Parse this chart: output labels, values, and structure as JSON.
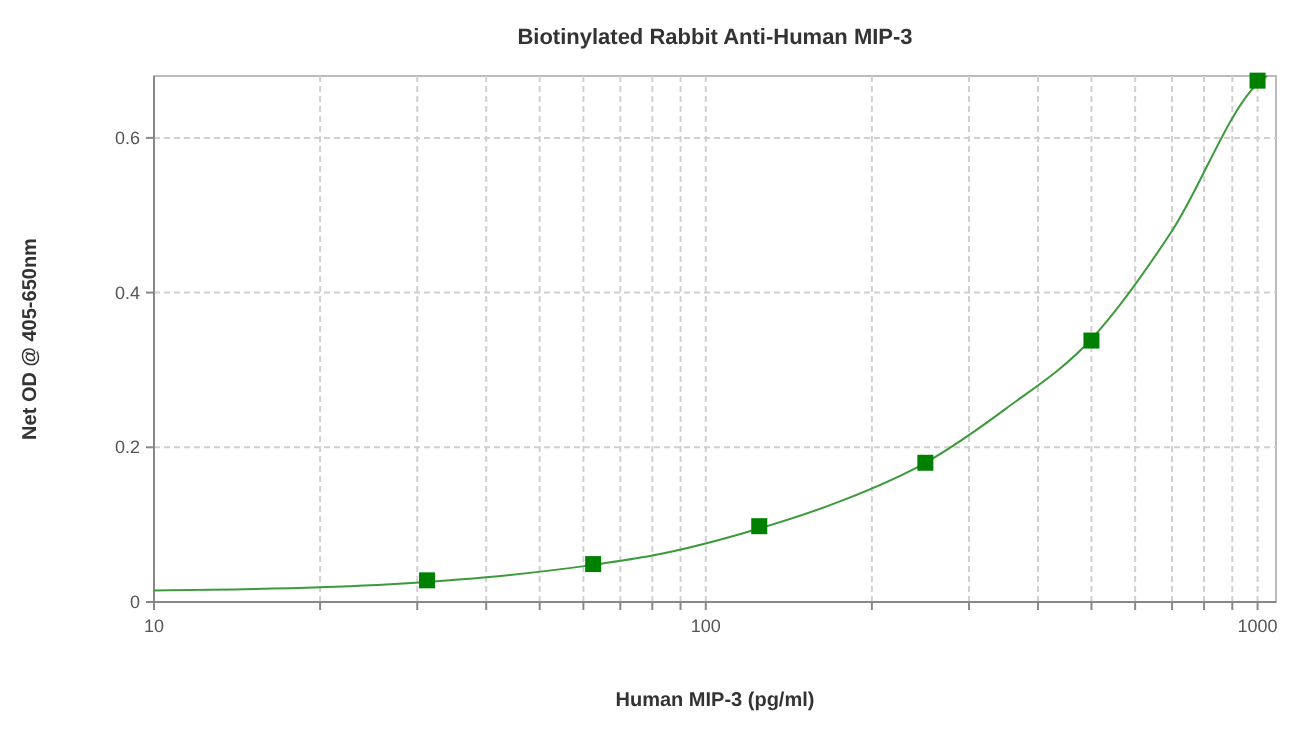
{
  "chart_data": {
    "type": "scatter",
    "title": "Biotinylated Rabbit Anti-Human MIP-3",
    "xlabel": "Human MIP-3 (pg/ml)",
    "ylabel": "Net OD @ 405-650nm",
    "log": "x",
    "grid": true,
    "xlim": [
      10,
      1080
    ],
    "ylim": [
      0,
      0.68
    ],
    "xticks": [
      10,
      {
        "value": 20,
        "label": null
      },
      {
        "value": 30,
        "label": null
      },
      {
        "value": 40,
        "label": null
      },
      {
        "value": 50,
        "label": null
      },
      {
        "value": 60,
        "label": null
      },
      {
        "value": 70,
        "label": null
      },
      {
        "value": 80,
        "label": null
      },
      {
        "value": 90,
        "label": null
      },
      100,
      {
        "value": 200,
        "label": null
      },
      {
        "value": 300,
        "label": null
      },
      {
        "value": 400,
        "label": null
      },
      {
        "value": 500,
        "label": null
      },
      {
        "value": 600,
        "label": null
      },
      {
        "value": 700,
        "label": null
      },
      {
        "value": 800,
        "label": null
      },
      {
        "value": 900,
        "label": null
      },
      1000
    ],
    "yticks": [
      0,
      0.2,
      0.4,
      0.6
    ],
    "series": [
      {
        "type": "line",
        "color": "#3c9a3c",
        "marker": "none",
        "line_style": "solid",
        "x": [
          10,
          20,
          31.25,
          40,
          62.5,
          80,
          125,
          175,
          250,
          350,
          500,
          700,
          1000,
          1040
        ],
        "values": [
          0.015,
          0.019,
          0.026,
          0.032,
          0.048,
          0.06,
          0.095,
          0.13,
          0.18,
          0.25,
          0.34,
          0.48,
          0.67,
          0.68
        ]
      },
      {
        "color": "#008000",
        "marker": "square",
        "x": [
          31.25,
          62.5,
          125,
          250,
          500,
          1000
        ],
        "values": [
          0.028,
          0.049,
          0.098,
          0.18,
          0.338,
          0.674
        ]
      }
    ]
  }
}
